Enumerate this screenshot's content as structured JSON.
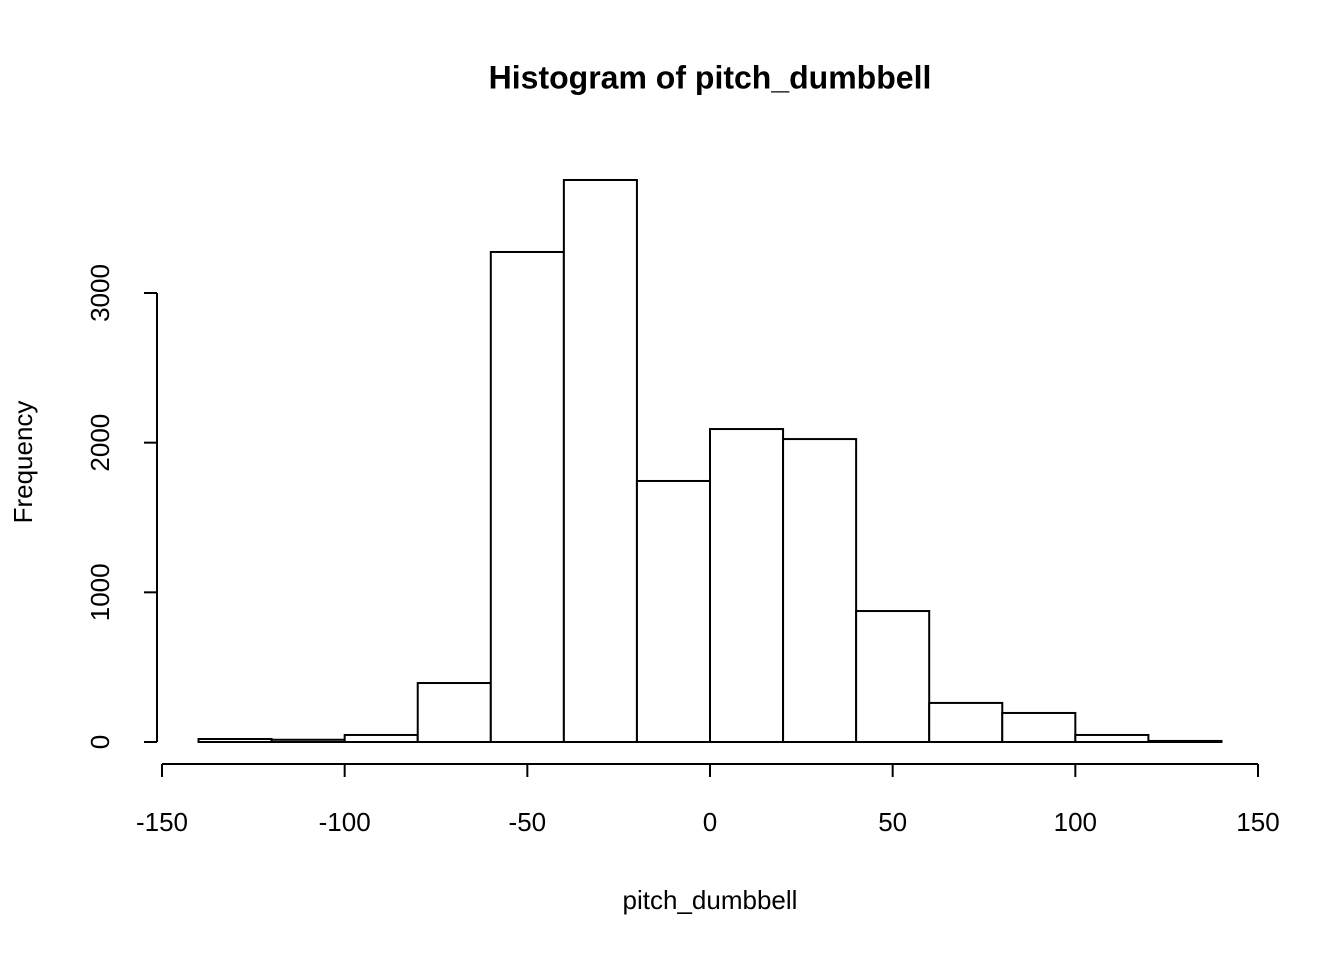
{
  "chart_data": {
    "type": "histogram",
    "title": "Histogram of pitch_dumbbell",
    "x_label": "pitch_dumbbell",
    "y_label": "Frequency",
    "bins": [
      -140,
      -120,
      -100,
      -80,
      -60,
      -40,
      -20,
      0,
      20,
      40,
      60,
      80,
      100,
      120,
      140
    ],
    "values": [
      20,
      15,
      47,
      394,
      3274,
      3755,
      1744,
      2091,
      2024,
      875,
      261,
      194,
      47,
      7
    ],
    "color": "#ffffff",
    "xlim": [
      -150,
      150
    ],
    "xticks": [
      -150,
      -100,
      -50,
      0,
      50,
      100,
      150
    ],
    "ylim": [
      0,
      3900
    ],
    "yticks": [
      0,
      1000,
      2000,
      3000
    ]
  }
}
